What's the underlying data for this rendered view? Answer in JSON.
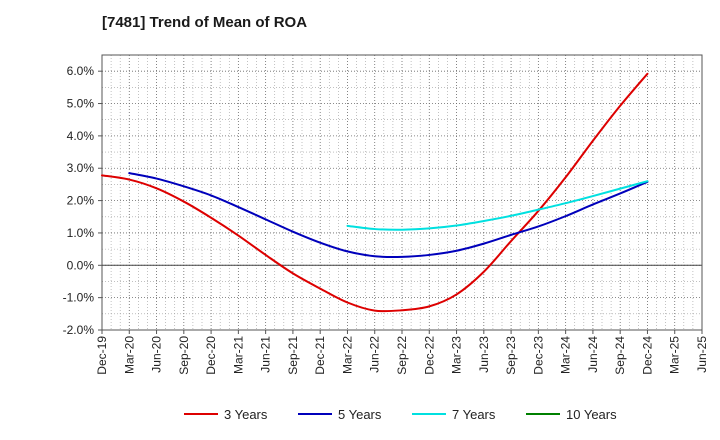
{
  "chart_data": {
    "type": "line",
    "title": "[7481]  Trend of Mean of ROA",
    "xlabel": "",
    "ylabel": "",
    "ylim": [
      -2.0,
      6.5
    ],
    "y_ticks": [
      -2.0,
      -1.0,
      0.0,
      1.0,
      2.0,
      3.0,
      4.0,
      5.0,
      6.0
    ],
    "y_tick_labels": [
      "-2.0%",
      "-1.0%",
      "0.0%",
      "1.0%",
      "2.0%",
      "3.0%",
      "4.0%",
      "5.0%",
      "6.0%"
    ],
    "x_tick_labels": [
      "Dec-19",
      "Mar-20",
      "Jun-20",
      "Sep-20",
      "Dec-20",
      "Mar-21",
      "Jun-21",
      "Sep-21",
      "Dec-21",
      "Mar-22",
      "Jun-22",
      "Sep-22",
      "Dec-22",
      "Mar-23",
      "Jun-23",
      "Sep-23",
      "Dec-23",
      "Mar-24",
      "Jun-24",
      "Sep-24",
      "Dec-24",
      "Mar-25",
      "Jun-25"
    ],
    "grid": true,
    "legend_position": "bottom",
    "series": [
      {
        "name": "3 Years",
        "color": "#dd0000",
        "start_index": 0,
        "values": [
          2.78,
          2.65,
          2.38,
          1.97,
          1.47,
          0.92,
          0.32,
          -0.25,
          -0.72,
          -1.15,
          -1.4,
          -1.39,
          -1.27,
          -0.9,
          -0.2,
          0.75,
          1.68,
          2.72,
          3.85,
          4.93,
          5.92
        ]
      },
      {
        "name": "5 Years",
        "color": "#0000bb",
        "start_index": 1,
        "values": [
          2.85,
          2.68,
          2.44,
          2.16,
          1.8,
          1.42,
          1.04,
          0.7,
          0.43,
          0.28,
          0.26,
          0.32,
          0.45,
          0.67,
          0.94,
          1.2,
          1.52,
          1.88,
          2.22,
          2.58
        ]
      },
      {
        "name": "7 Years",
        "color": "#00e0e0",
        "start_index": 9,
        "values": [
          1.22,
          1.12,
          1.1,
          1.14,
          1.23,
          1.37,
          1.53,
          1.72,
          1.92,
          2.14,
          2.37,
          2.6
        ]
      },
      {
        "name": "10 Years",
        "color": "#008000",
        "start_index": 0,
        "values": []
      }
    ]
  }
}
